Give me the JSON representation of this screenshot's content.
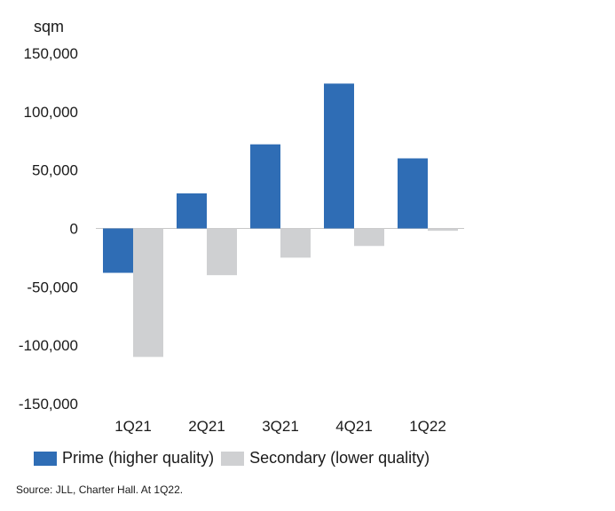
{
  "chart_data": {
    "type": "bar",
    "unit_label": "sqm",
    "categories": [
      "1Q21",
      "2Q21",
      "3Q21",
      "4Q21",
      "1Q22"
    ],
    "series": [
      {
        "name": "Prime (higher quality)",
        "color": "#2f6db5",
        "values": [
          -38000,
          30000,
          72000,
          124000,
          60000
        ]
      },
      {
        "name": "Secondary (lower quality)",
        "color": "#cfd0d2",
        "values": [
          -110000,
          -40000,
          -25000,
          -15000,
          -2000
        ]
      }
    ],
    "ylim": [
      -150000,
      150000
    ],
    "yticks": [
      150000,
      100000,
      50000,
      0,
      -50000,
      -100000,
      -150000
    ],
    "ytick_labels": [
      "150,000",
      "100,000",
      "50,000",
      "0",
      "-50,000",
      "-100,000",
      "-150,000"
    ],
    "grid": false,
    "legend_position": "bottom-left"
  },
  "source": "Source: JLL, Charter Hall. At 1Q22."
}
